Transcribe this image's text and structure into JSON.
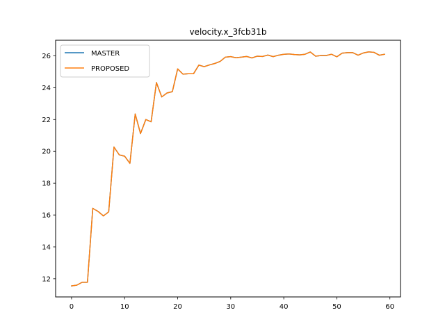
{
  "chart_data": {
    "type": "line",
    "title": "velocity.x_3fcb31b",
    "xlabel": "",
    "ylabel": "",
    "xlim": [
      -3,
      62
    ],
    "ylim": [
      10.86,
      26.98
    ],
    "xticks": [
      0,
      10,
      20,
      30,
      40,
      50,
      60
    ],
    "yticks": [
      12,
      14,
      16,
      18,
      20,
      22,
      24,
      26
    ],
    "grid": false,
    "legend_position": "upper-left",
    "x": [
      0,
      1,
      2,
      3,
      4,
      5,
      6,
      7,
      8,
      9,
      10,
      11,
      12,
      13,
      14,
      15,
      16,
      17,
      18,
      19,
      20,
      21,
      22,
      23,
      24,
      25,
      26,
      27,
      28,
      29,
      30,
      31,
      32,
      33,
      34,
      35,
      36,
      37,
      38,
      39,
      40,
      41,
      42,
      43,
      44,
      45,
      46,
      47,
      48,
      49,
      50,
      51,
      52,
      53,
      54,
      55,
      56,
      57,
      58,
      59
    ],
    "series": [
      {
        "name": "MASTER",
        "color": "#1f77b4",
        "values": [
          11.55,
          11.6,
          11.78,
          11.78,
          16.42,
          16.23,
          15.95,
          16.2,
          20.27,
          19.78,
          19.7,
          19.25,
          22.35,
          21.12,
          22.0,
          21.86,
          24.32,
          23.42,
          23.67,
          23.75,
          25.18,
          24.85,
          24.88,
          24.88,
          25.42,
          25.32,
          25.43,
          25.52,
          25.65,
          25.92,
          25.95,
          25.88,
          25.92,
          25.96,
          25.87,
          25.98,
          25.96,
          26.05,
          25.95,
          26.04,
          26.1,
          26.12,
          26.08,
          26.06,
          26.1,
          26.24,
          25.98,
          26.02,
          26.02,
          26.1,
          25.94,
          26.17,
          26.2,
          26.2,
          26.04,
          26.18,
          26.25,
          26.22,
          26.04,
          26.1
        ]
      },
      {
        "name": "PROPOSED",
        "color": "#ff7f0e",
        "values": [
          11.55,
          11.6,
          11.78,
          11.78,
          16.42,
          16.23,
          15.95,
          16.2,
          20.27,
          19.78,
          19.7,
          19.25,
          22.35,
          21.12,
          22.0,
          21.86,
          24.32,
          23.42,
          23.67,
          23.75,
          25.18,
          24.85,
          24.88,
          24.88,
          25.42,
          25.32,
          25.43,
          25.52,
          25.65,
          25.92,
          25.95,
          25.88,
          25.92,
          25.96,
          25.87,
          25.98,
          25.96,
          26.05,
          25.95,
          26.04,
          26.1,
          26.12,
          26.08,
          26.06,
          26.1,
          26.24,
          25.98,
          26.02,
          26.02,
          26.1,
          25.94,
          26.17,
          26.2,
          26.2,
          26.04,
          26.18,
          26.25,
          26.22,
          26.04,
          26.1
        ]
      }
    ]
  }
}
